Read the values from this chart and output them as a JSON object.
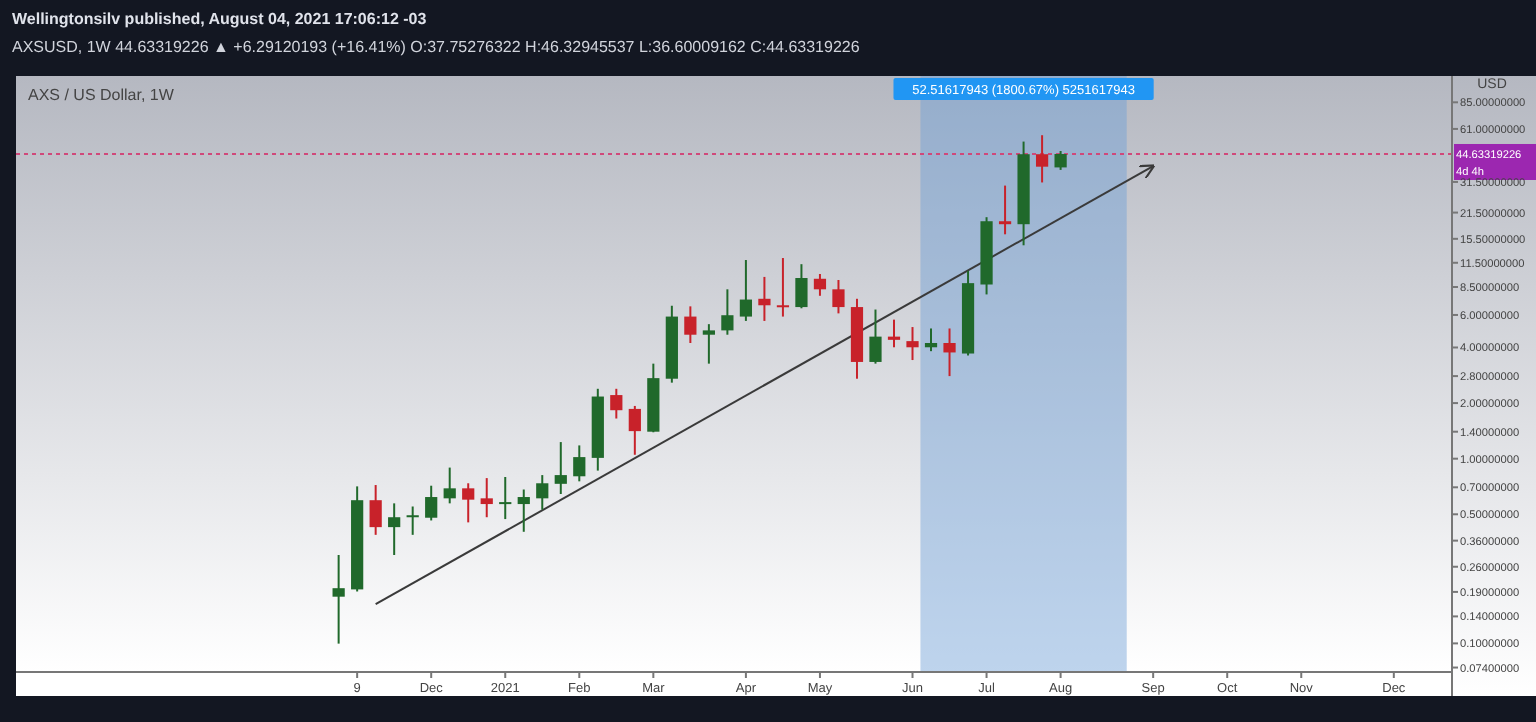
{
  "chart_data": {
    "type": "candlestick",
    "title": "AXS / US Dollar, 1W",
    "ylabel": "USD",
    "log": true,
    "grid": false,
    "annotations": [
      "Wellingtonsilv published, August 04, 2021 17:06:12 -03",
      "AXSUSD, 1W 44.63319226 ▲ +6.29120193 (+16.41%) O:37.75276322 H:46.32945537 L:36.60009162 C:44.63319226",
      "52.51617943 (1800.67%) 5251617943",
      "4d 4h"
    ],
    "x": [
      "2020-11-02",
      "2020-11-09",
      "2020-11-16",
      "2020-11-23",
      "2020-11-30",
      "2020-12-07",
      "2020-12-14",
      "2020-12-21",
      "2020-12-28",
      "2021-01-04",
      "2021-01-11",
      "2021-01-18",
      "2021-01-25",
      "2021-02-01",
      "2021-02-08",
      "2021-02-15",
      "2021-02-22",
      "2021-03-01",
      "2021-03-08",
      "2021-03-15",
      "2021-03-22",
      "2021-03-29",
      "2021-04-05",
      "2021-04-12",
      "2021-04-19",
      "2021-04-26",
      "2021-05-03",
      "2021-05-10",
      "2021-05-17",
      "2021-05-24",
      "2021-05-31",
      "2021-06-07",
      "2021-06-14",
      "2021-06-21",
      "2021-06-28",
      "2021-07-05",
      "2021-07-12",
      "2021-07-19",
      "2021-07-26",
      "2021-08-02"
    ],
    "ohlc": [
      [
        0.179,
        0.301,
        0.0997,
        0.199
      ],
      [
        0.196,
        0.708,
        0.191,
        0.596
      ],
      [
        0.596,
        0.72,
        0.387,
        0.426
      ],
      [
        0.426,
        0.573,
        0.301,
        0.482
      ],
      [
        0.482,
        0.551,
        0.387,
        0.494
      ],
      [
        0.479,
        0.714,
        0.463,
        0.62
      ],
      [
        0.61,
        0.895,
        0.573,
        0.691
      ],
      [
        0.691,
        0.736,
        0.452,
        0.6
      ],
      [
        0.61,
        0.785,
        0.482,
        0.568
      ],
      [
        0.573,
        0.796,
        0.471,
        0.582
      ],
      [
        0.568,
        0.681,
        0.402,
        0.62
      ],
      [
        0.61,
        0.815,
        0.53,
        0.736
      ],
      [
        0.731,
        1.23,
        0.644,
        0.815
      ],
      [
        0.803,
        1.18,
        0.754,
        1.02
      ],
      [
        1.01,
        2.39,
        0.862,
        2.17
      ],
      [
        2.21,
        2.39,
        1.65,
        1.83
      ],
      [
        1.86,
        1.93,
        1.05,
        1.41
      ],
      [
        1.4,
        3.27,
        1.39,
        2.73
      ],
      [
        2.71,
        6.73,
        2.58,
        5.88
      ],
      [
        5.88,
        6.68,
        4.23,
        4.69
      ],
      [
        4.69,
        5.35,
        3.27,
        4.95
      ],
      [
        4.95,
        8.26,
        4.69,
        5.98
      ],
      [
        5.88,
        11.9,
        5.57,
        7.27
      ],
      [
        7.34,
        9.64,
        5.57,
        6.77
      ],
      [
        6.77,
        12.2,
        5.88,
        6.68
      ],
      [
        6.62,
        11.3,
        6.52,
        9.51
      ],
      [
        9.42,
        10,
        7.62,
        8.26
      ],
      [
        8.26,
        9.28,
        6.12,
        6.62
      ],
      [
        6.62,
        7.34,
        2.71,
        3.34
      ],
      [
        3.34,
        6.42,
        3.27,
        4.58
      ],
      [
        4.58,
        5.66,
        4.01,
        4.4
      ],
      [
        4.33,
        5.16,
        3.42,
        4.01
      ],
      [
        4.01,
        5.07,
        3.82,
        4.23
      ],
      [
        4.23,
        5.07,
        2.8,
        3.76
      ],
      [
        3.71,
        10.4,
        3.62,
        8.92
      ],
      [
        8.77,
        20.3,
        7.75,
        19.3
      ],
      [
        19.3,
        30.1,
        16.4,
        18.6
      ],
      [
        18.6,
        52.1,
        14.3,
        44.5
      ],
      [
        44.5,
        56.4,
        31.3,
        38.1
      ],
      [
        37.75276322,
        46.32945537,
        36.60009162,
        44.63319226
      ]
    ],
    "colors": [
      "#20692b",
      "#20692b",
      "#c8222a",
      "#20692b",
      "#20692b",
      "#20692b",
      "#20692b",
      "#c8222a",
      "#c8222a",
      "#20692b",
      "#20692b",
      "#20692b",
      "#20692b",
      "#20692b",
      "#20692b",
      "#c8222a",
      "#c8222a",
      "#20692b",
      "#20692b",
      "#c8222a",
      "#20692b",
      "#20692b",
      "#20692b",
      "#c8222a",
      "#c8222a",
      "#20692b",
      "#c8222a",
      "#c8222a",
      "#c8222a",
      "#20692b",
      "#c8222a",
      "#c8222a",
      "#20692b",
      "#c8222a",
      "#20692b",
      "#20692b",
      "#c8222a",
      "#20692b",
      "#c8222a",
      "#20692b"
    ],
    "series": [
      {
        "type": "line",
        "x": [
          "2020-11-16",
          "2021-09-06"
        ],
        "values": [
          0.163,
          38.4
        ],
        "color": "#3a3a3a"
      }
    ],
    "ylim": [
      0.07,
      118
    ],
    "yticks": [
      {
        "value": 85,
        "label": "85.00000000"
      },
      {
        "value": 61,
        "label": "61.00000000"
      },
      {
        "value": 31.5,
        "label": "31.50000000"
      },
      {
        "value": 21.5,
        "label": "21.50000000"
      },
      {
        "value": 15.5,
        "label": "15.50000000"
      },
      {
        "value": 11.5,
        "label": "11.50000000"
      },
      {
        "value": 8.5,
        "label": "8.50000000"
      },
      {
        "value": 6,
        "label": "6.00000000"
      },
      {
        "value": 4,
        "label": "4.00000000"
      },
      {
        "value": 2.8,
        "label": "2.80000000"
      },
      {
        "value": 2,
        "label": "2.00000000"
      },
      {
        "value": 1.4,
        "label": "1.40000000"
      },
      {
        "value": 1,
        "label": "1.00000000"
      },
      {
        "value": 0.7,
        "label": "0.70000000"
      },
      {
        "value": 0.5,
        "label": "0.50000000"
      },
      {
        "value": 0.36,
        "label": "0.36000000"
      },
      {
        "value": 0.26,
        "label": "0.26000000"
      },
      {
        "value": 0.19,
        "label": "0.19000000"
      },
      {
        "value": 0.14,
        "label": "0.14000000"
      },
      {
        "value": 0.1,
        "label": "0.10000000"
      },
      {
        "value": 0.074,
        "label": "0.07400000"
      }
    ],
    "xlim": [
      "2020-07-03",
      "2021-12-28"
    ],
    "xticks": [
      {
        "value": "2020-11-09",
        "label": "9"
      },
      {
        "value": "2020-12-07",
        "label": "Dec"
      },
      {
        "value": "2021-01-04",
        "label": "2021"
      },
      {
        "value": "2021-02-01",
        "label": "Feb"
      },
      {
        "value": "2021-03-01",
        "label": "Mar"
      },
      {
        "value": "2021-04-05",
        "label": "Apr"
      },
      {
        "value": "2021-05-03",
        "label": "May"
      },
      {
        "value": "2021-06-07",
        "label": "Jun"
      },
      {
        "value": "2021-07-05",
        "label": "Jul"
      },
      {
        "value": "2021-08-02",
        "label": "Aug"
      },
      {
        "value": "2021-09-06",
        "label": "Sep"
      },
      {
        "value": "2021-10-04",
        "label": "Oct"
      },
      {
        "value": "2021-11-01",
        "label": "Nov"
      },
      {
        "value": "2021-12-06",
        "label": "Dec"
      }
    ],
    "ref_lines": [
      {
        "axis": "y",
        "value": 44.63319226,
        "label": "44.63319226",
        "color": "#d0487a",
        "line_style": "dotted"
      }
    ],
    "bands": [
      {
        "axis": "x",
        "from": "2021-06-10",
        "to": "2021-08-27",
        "color": "#6f9fd8"
      }
    ]
  }
}
